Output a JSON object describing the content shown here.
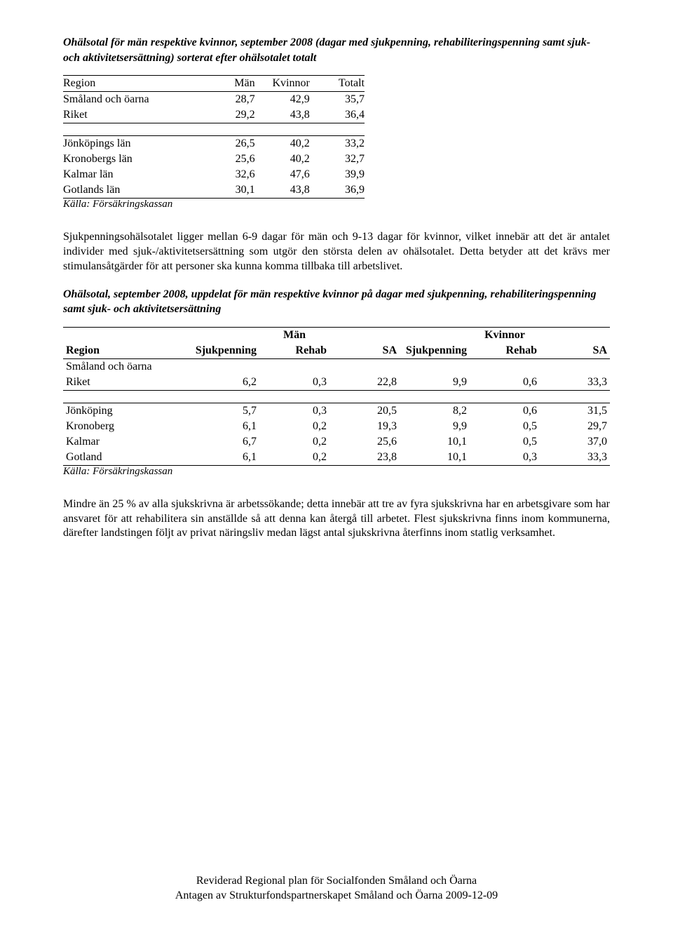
{
  "title1": "Ohälsotal för män respektive kvinnor, september 2008 (dagar med sjukpenning, rehabiliteringspenning samt sjuk- och aktivitetsersättning) sorterat efter ohälsotalet totalt",
  "table1": {
    "headers": [
      "Region",
      "Män",
      "Kvinnor",
      "Totalt"
    ],
    "top": [
      {
        "region": "Småland och öarna",
        "man": "28,7",
        "kv": "42,9",
        "tot": "35,7"
      },
      {
        "region": "Riket",
        "man": "29,2",
        "kv": "43,8",
        "tot": "36,4"
      }
    ],
    "bottom": [
      {
        "region": "Jönköpings län",
        "man": "26,5",
        "kv": "40,2",
        "tot": "33,2"
      },
      {
        "region": "Kronobergs län",
        "man": "25,6",
        "kv": "40,2",
        "tot": "32,7"
      },
      {
        "region": "Kalmar län",
        "man": "32,6",
        "kv": "47,6",
        "tot": "39,9"
      },
      {
        "region": "Gotlands län",
        "man": "30,1",
        "kv": "43,8",
        "tot": "36,9"
      }
    ],
    "source": "Källa: Försäkringskassan"
  },
  "para1": "Sjukpenningsohälsotalet ligger mellan 6-9 dagar för män och 9-13 dagar för kvinnor, vilket innebär att det är antalet individer med sjuk-/aktivitetsersättning som utgör den största delen av ohälsotalet. Detta betyder att det krävs mer stimulansåtgärder för att personer ska kunna komma tillbaka till arbetslivet.",
  "title2": "Ohälsotal, september 2008, uppdelat för män respektive kvinnor på dagar med sjukpenning, rehabiliteringspenning samt sjuk- och aktivitetsersättning",
  "table2": {
    "groups": [
      "Män",
      "Kvinnor"
    ],
    "headers": [
      "Region",
      "Sjukpenning",
      "Rehab",
      "SA",
      "Sjukpenning",
      "Rehab",
      "SA"
    ],
    "top": [
      {
        "region": "Småland och öarna",
        "c": [
          "",
          "",
          "",
          "",
          "",
          ""
        ]
      },
      {
        "region": "Riket",
        "c": [
          "6,2",
          "0,3",
          "22,8",
          "9,9",
          "0,6",
          "33,3"
        ]
      }
    ],
    "bottom": [
      {
        "region": "Jönköping",
        "c": [
          "5,7",
          "0,3",
          "20,5",
          "8,2",
          "0,6",
          "31,5"
        ]
      },
      {
        "region": "Kronoberg",
        "c": [
          "6,1",
          "0,2",
          "19,3",
          "9,9",
          "0,5",
          "29,7"
        ]
      },
      {
        "region": "Kalmar",
        "c": [
          "6,7",
          "0,2",
          "25,6",
          "10,1",
          "0,5",
          "37,0"
        ]
      },
      {
        "region": "Gotland",
        "c": [
          "6,1",
          "0,2",
          "23,8",
          "10,1",
          "0,3",
          "33,3"
        ]
      }
    ],
    "source": "Källa: Försäkringskassan"
  },
  "para2": "Mindre än 25 % av alla sjukskrivna är arbetssökande; detta innebär att tre av fyra sjukskrivna har en arbetsgivare som har ansvaret för att rehabilitera sin anställde så att denna kan återgå till arbetet. Flest sjukskrivna finns inom kommunerna, därefter landstingen följt av privat näringsliv medan lägst antal sjukskrivna återfinns inom statlig verksamhet.",
  "footer": {
    "line1": "Reviderad Regional plan för Socialfonden Småland och Öarna",
    "line2": "Antagen av Strukturfondspartnerskapet Småland och Öarna 2009-12-09"
  }
}
